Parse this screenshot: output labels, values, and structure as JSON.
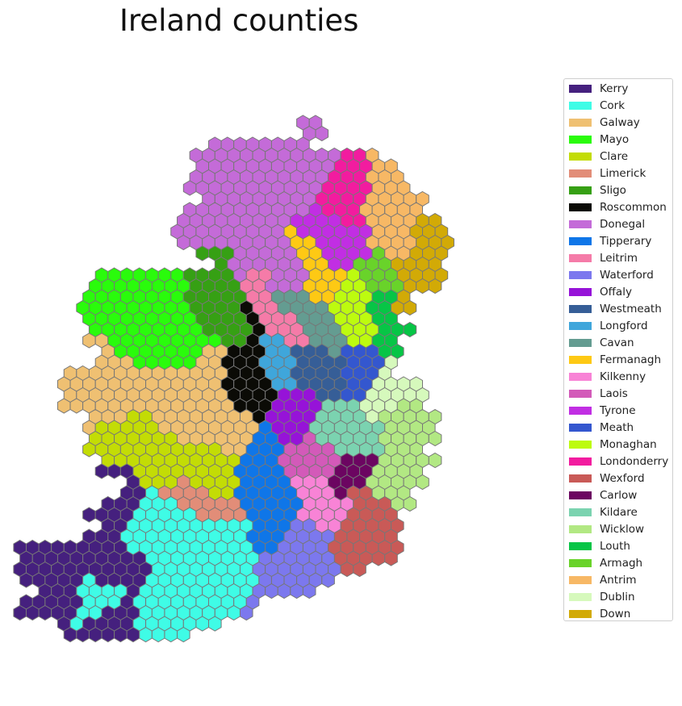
{
  "chart_data": {
    "type": "hexbin-map",
    "title": "Ireland counties",
    "legend_placement": "right",
    "hex_edge_color": "#777777",
    "counties": [
      {
        "name": "Kerry",
        "color": "#45207e"
      },
      {
        "name": "Cork",
        "color": "#3ffce6"
      },
      {
        "name": "Galway",
        "color": "#efc072"
      },
      {
        "name": "Mayo",
        "color": "#2afb0c"
      },
      {
        "name": "Clare",
        "color": "#c3dc05"
      },
      {
        "name": "Limerick",
        "color": "#e28d78"
      },
      {
        "name": "Sligo",
        "color": "#36a014"
      },
      {
        "name": "Roscommon",
        "color": "#0b0b06"
      },
      {
        "name": "Donegal",
        "color": "#c46bd8"
      },
      {
        "name": "Tipperary",
        "color": "#0f76e8"
      },
      {
        "name": "Leitrim",
        "color": "#f57ba8"
      },
      {
        "name": "Waterford",
        "color": "#7c78ee"
      },
      {
        "name": "Offaly",
        "color": "#9613d8"
      },
      {
        "name": "Westmeath",
        "color": "#365e97"
      },
      {
        "name": "Longford",
        "color": "#3fa6db"
      },
      {
        "name": "Cavan",
        "color": "#649c91"
      },
      {
        "name": "Fermanagh",
        "color": "#fec914"
      },
      {
        "name": "Kilkenny",
        "color": "#f883d6"
      },
      {
        "name": "Laois",
        "color": "#d35ab9"
      },
      {
        "name": "Tyrone",
        "color": "#c12ee3"
      },
      {
        "name": "Meath",
        "color": "#3457cf"
      },
      {
        "name": "Monaghan",
        "color": "#bdfb0f"
      },
      {
        "name": "Londonderry",
        "color": "#f21c9f"
      },
      {
        "name": "Wexford",
        "color": "#c95a57"
      },
      {
        "name": "Carlow",
        "color": "#6c0561"
      },
      {
        "name": "Kildare",
        "color": "#7bd3b0"
      },
      {
        "name": "Wicklow",
        "color": "#b2e883"
      },
      {
        "name": "Louth",
        "color": "#07c546"
      },
      {
        "name": "Armagh",
        "color": "#69d32a"
      },
      {
        "name": "Antrim",
        "color": "#f7b865"
      },
      {
        "name": "Dublin",
        "color": "#d6f9bc"
      },
      {
        "name": "Down",
        "color": "#d2aa06"
      }
    ]
  }
}
